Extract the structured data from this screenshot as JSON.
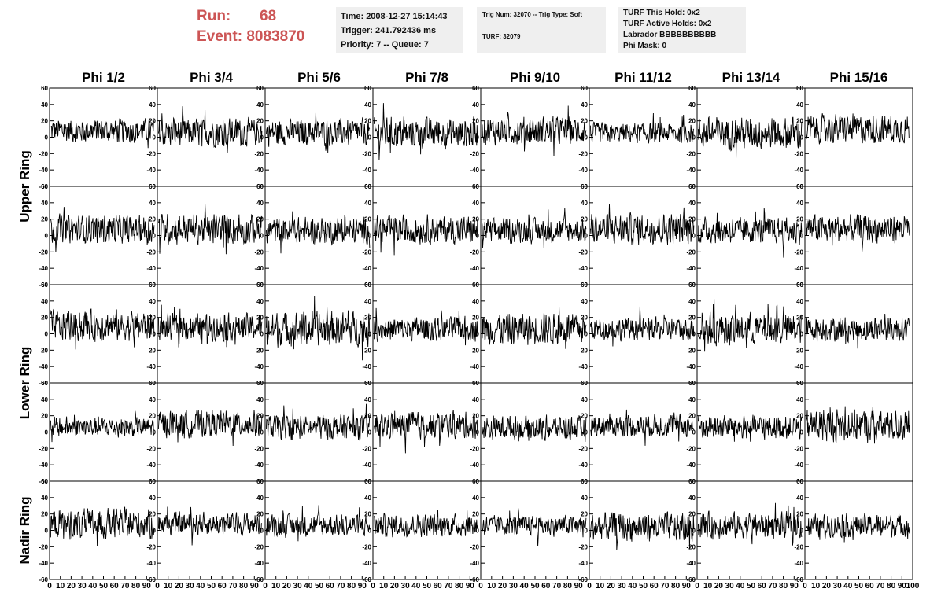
{
  "header": {
    "run_label": "Run:",
    "run_value": "68",
    "event_label": "Event:",
    "event_value": "8083870"
  },
  "info_time": {
    "time": "Time: 2008-12-27 15:14:43",
    "trigger": "Trigger: 241.792436 ms",
    "priority": "Priority: 7 -- Queue: 7"
  },
  "info_trig": {
    "trig": "Trig Num: 32070 -- Trig Type: Soft",
    "turf": "TURF: 32079"
  },
  "info_turf": {
    "this_hold": "TURF This Hold: 0x2",
    "active_holds": "TURF Active Holds: 0x2",
    "labrador": "Labrador BBBBBBBBBB",
    "phi_mask": "Phi Mask: 0"
  },
  "colors": {
    "header_red": "#cc5555",
    "panel_bg": "#efefef",
    "trace": "#000000"
  },
  "chart_data": {
    "type": "line",
    "columns": [
      "Phi 1/2",
      "Phi 3/4",
      "Phi 5/6",
      "Phi 7/8",
      "Phi 9/10",
      "Phi 11/12",
      "Phi 13/14",
      "Phi 15/16"
    ],
    "row_labels": [
      "Upper Ring",
      "Lower Ring",
      "Nadir Ring"
    ],
    "ylim": [
      -60,
      60
    ],
    "xlim": [
      0,
      100
    ],
    "y_ticks": [
      "60",
      "40",
      "20",
      "0",
      "-20",
      "-40",
      "-60"
    ],
    "x_ticks": [
      "0",
      "10",
      "20",
      "30",
      "40",
      "50",
      "60",
      "70",
      "80",
      "90",
      "100"
    ],
    "trace_amplitude": [
      [
        12,
        14,
        13,
        15,
        14,
        10,
        16,
        14
      ],
      [
        14,
        15,
        13,
        14,
        12,
        15,
        13,
        14
      ],
      [
        15,
        13,
        17,
        12,
        16,
        11,
        16,
        12
      ],
      [
        10,
        13,
        12,
        13,
        12,
        11,
        12,
        16
      ],
      [
        15,
        11,
        11,
        11,
        10,
        14,
        13,
        11
      ]
    ],
    "trace_offset": [
      [
        8,
        6,
        6,
        5,
        8,
        5,
        5,
        10
      ],
      [
        8,
        8,
        6,
        7,
        6,
        8,
        6,
        8
      ],
      [
        10,
        8,
        6,
        6,
        6,
        6,
        6,
        6
      ],
      [
        6,
        10,
        6,
        8,
        5,
        8,
        6,
        8
      ],
      [
        8,
        8,
        6,
        6,
        6,
        4,
        6,
        6
      ]
    ]
  }
}
